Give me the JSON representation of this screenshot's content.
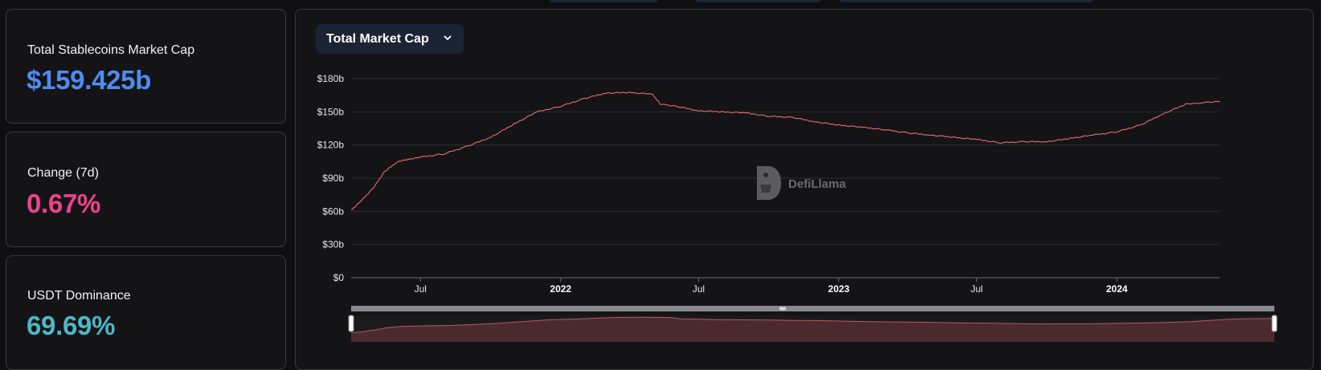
{
  "stats": [
    {
      "label": "Total Stablecoins Market Cap",
      "value": "$159.425b"
    },
    {
      "label": "Change (7d)",
      "value": "0.67%"
    },
    {
      "label": "USDT Dominance",
      "value": "69.69%"
    }
  ],
  "selector": {
    "label": "Total Market Cap",
    "icon": "chevron-down-icon"
  },
  "watermark": "DefiLlama",
  "colors": {
    "series": "#e86c6c",
    "change": "#f0428c",
    "total": "#4f8cf0",
    "dominance": "#4db8c4"
  },
  "chart_data": {
    "type": "line",
    "title": "",
    "xlabel": "",
    "ylabel": "",
    "ylim": [
      0,
      180
    ],
    "y_unit": "$b",
    "y_ticks": [
      "$0",
      "$30b",
      "$60b",
      "$90b",
      "$120b",
      "$150b",
      "$180b"
    ],
    "x_ticks": [
      {
        "label": "Jul",
        "date": "2021-07-01",
        "bold": false
      },
      {
        "label": "2022",
        "date": "2022-01-01",
        "bold": true
      },
      {
        "label": "Jul",
        "date": "2022-07-01",
        "bold": false
      },
      {
        "label": "2023",
        "date": "2023-01-01",
        "bold": true
      },
      {
        "label": "Jul",
        "date": "2023-07-01",
        "bold": false
      },
      {
        "label": "2024",
        "date": "2024-01-01",
        "bold": true
      }
    ],
    "x_range": [
      "2021-04-01",
      "2024-05-15"
    ],
    "series": [
      {
        "values": [
          [
            "2021-04-01",
            61
          ],
          [
            "2021-04-15",
            70
          ],
          [
            "2021-05-01",
            82
          ],
          [
            "2021-05-15",
            96
          ],
          [
            "2021-06-01",
            105
          ],
          [
            "2021-06-15",
            107
          ],
          [
            "2021-07-01",
            109
          ],
          [
            "2021-08-01",
            112
          ],
          [
            "2021-09-01",
            119
          ],
          [
            "2021-10-01",
            127
          ],
          [
            "2021-11-01",
            139
          ],
          [
            "2021-12-01",
            150
          ],
          [
            "2022-01-01",
            155
          ],
          [
            "2022-02-01",
            162
          ],
          [
            "2022-03-01",
            167
          ],
          [
            "2022-04-01",
            167.5
          ],
          [
            "2022-05-01",
            166
          ],
          [
            "2022-05-12",
            157
          ],
          [
            "2022-06-01",
            155
          ],
          [
            "2022-07-01",
            151
          ],
          [
            "2022-08-01",
            150
          ],
          [
            "2022-09-01",
            149
          ],
          [
            "2022-10-01",
            146
          ],
          [
            "2022-11-01",
            145
          ],
          [
            "2022-12-01",
            141
          ],
          [
            "2023-01-01",
            138
          ],
          [
            "2023-02-01",
            136
          ],
          [
            "2023-03-01",
            134
          ],
          [
            "2023-04-01",
            131
          ],
          [
            "2023-05-01",
            129
          ],
          [
            "2023-06-01",
            127
          ],
          [
            "2023-07-01",
            125
          ],
          [
            "2023-08-01",
            122
          ],
          [
            "2023-09-01",
            123
          ],
          [
            "2023-10-01",
            123
          ],
          [
            "2023-11-01",
            126
          ],
          [
            "2023-12-01",
            129
          ],
          [
            "2024-01-01",
            132
          ],
          [
            "2024-02-01",
            138
          ],
          [
            "2024-03-01",
            148
          ],
          [
            "2024-04-01",
            157
          ],
          [
            "2024-05-15",
            159.4
          ]
        ]
      }
    ]
  }
}
